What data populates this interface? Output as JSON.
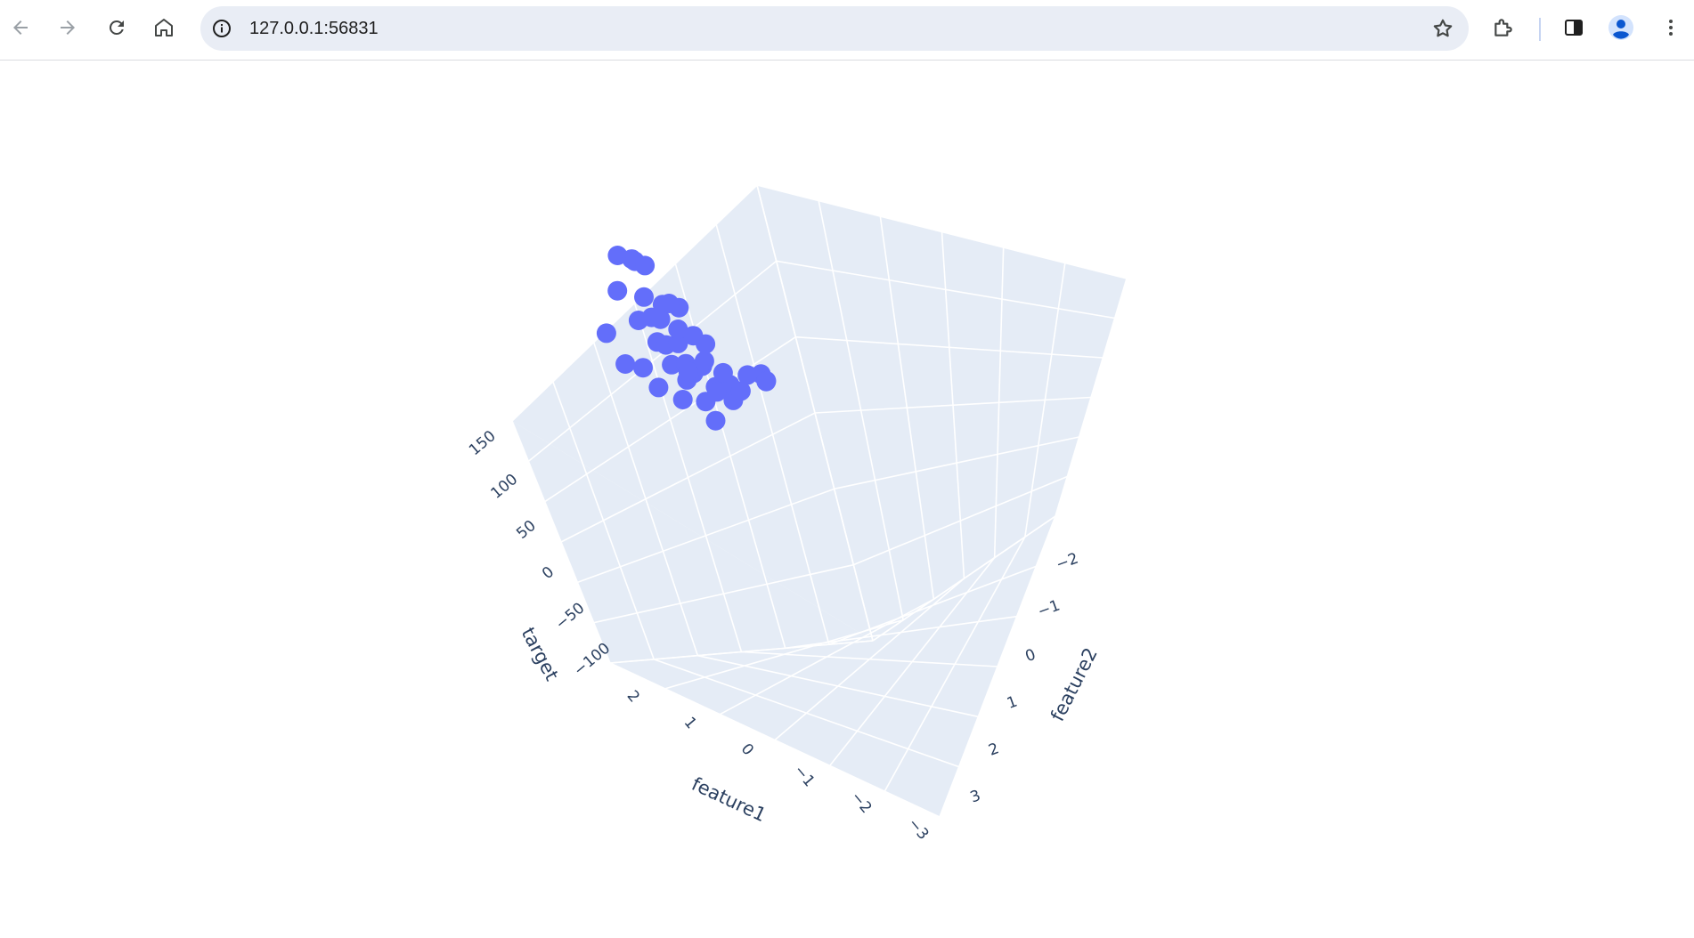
{
  "browser": {
    "url": "127.0.0.1:56831",
    "icons": [
      "back-arrow-icon",
      "forward-arrow-icon",
      "reload-icon",
      "home-icon",
      "site-info-icon",
      "bookmark-star-icon",
      "extensions-icon",
      "side-panel-icon",
      "profile-icon",
      "menu-kebab-icon"
    ]
  },
  "colors": {
    "marker": "#636efa",
    "scene_bg": "#e5ecf6",
    "grid": "#ffffff",
    "axis_text": "#2a3f5f"
  },
  "chart_data": {
    "type": "scatter3d",
    "title": "",
    "axes": {
      "x": {
        "title": "feature1",
        "ticks": [
          "2",
          "1",
          "0",
          "−1",
          "−2",
          "−3"
        ]
      },
      "y": {
        "title": "feature2",
        "ticks": [
          "−2",
          "−1",
          "0",
          "1",
          "2",
          "3"
        ]
      },
      "z": {
        "title": "target",
        "ticks": [
          "150",
          "100",
          "50",
          "0",
          "−50",
          "−100"
        ]
      }
    },
    "points": [
      {
        "feature1": 1.8,
        "feature2": -1.6,
        "target": 40
      },
      {
        "feature1": 1.6,
        "feature2": -1.2,
        "target": 110
      },
      {
        "feature1": 1.4,
        "feature2": -1.8,
        "target": 95
      },
      {
        "feature1": 1.5,
        "feature2": -0.8,
        "target": -10
      },
      {
        "feature1": 1.2,
        "feature2": -0.5,
        "target": 30
      },
      {
        "feature1": 1.1,
        "feature2": -1.4,
        "target": 120
      },
      {
        "feature1": 0.9,
        "feature2": -0.9,
        "target": 70
      },
      {
        "feature1": 0.8,
        "feature2": -2.0,
        "target": 140
      },
      {
        "feature1": 0.7,
        "feature2": -0.3,
        "target": 10
      },
      {
        "feature1": 0.6,
        "feature2": -1.1,
        "target": 60
      },
      {
        "feature1": 0.5,
        "feature2": -0.6,
        "target": 45
      },
      {
        "feature1": 0.4,
        "feature2": 0.1,
        "target": -20
      },
      {
        "feature1": 0.3,
        "feature2": -0.7,
        "target": 25
      },
      {
        "feature1": 0.2,
        "feature2": -1.3,
        "target": 85
      },
      {
        "feature1": 0.1,
        "feature2": -0.2,
        "target": 15
      },
      {
        "feature1": 0.0,
        "feature2": 0.3,
        "target": -35
      },
      {
        "feature1": -0.1,
        "feature2": -0.8,
        "target": 50
      },
      {
        "feature1": -0.2,
        "feature2": -0.4,
        "target": 5
      },
      {
        "feature1": -0.3,
        "feature2": 0.0,
        "target": -15
      },
      {
        "feature1": -0.4,
        "feature2": -1.6,
        "target": 100
      },
      {
        "feature1": -0.5,
        "feature2": 0.5,
        "target": -55
      },
      {
        "feature1": -0.6,
        "feature2": -0.1,
        "target": 0
      },
      {
        "feature1": -0.7,
        "feature2": 0.8,
        "target": -80
      },
      {
        "feature1": -0.8,
        "feature2": -0.5,
        "target": 20
      },
      {
        "feature1": -0.9,
        "feature2": 0.2,
        "target": -25
      },
      {
        "feature1": -1.0,
        "feature2": -1.0,
        "target": 55
      },
      {
        "feature1": -1.1,
        "feature2": 1.2,
        "target": -65
      },
      {
        "feature1": -1.2,
        "feature2": 0.6,
        "target": -30
      },
      {
        "feature1": -1.3,
        "feature2": -0.3,
        "target": 10
      },
      {
        "feature1": -1.4,
        "feature2": 1.0,
        "target": -45
      },
      {
        "feature1": -1.6,
        "feature2": 2.2,
        "target": -60
      },
      {
        "feature1": -1.8,
        "feature2": 0.4,
        "target": -5
      },
      {
        "feature1": -2.0,
        "feature2": 1.5,
        "target": -40
      },
      {
        "feature1": -2.2,
        "feature2": 0.9,
        "target": -20
      },
      {
        "feature1": 1.0,
        "feature2": 0.7,
        "target": -70
      },
      {
        "feature1": 0.5,
        "feature2": 1.4,
        "target": -95
      },
      {
        "feature1": -0.4,
        "feature2": 1.8,
        "target": -85
      },
      {
        "feature1": 1.3,
        "feature2": 0.2,
        "target": -40
      },
      {
        "feature1": 0.2,
        "feature2": 1.0,
        "target": -50
      },
      {
        "feature1": -0.8,
        "feature2": -1.5,
        "target": 75
      },
      {
        "feature1": 0.6,
        "feature2": -1.7,
        "target": 130
      },
      {
        "feature1": -0.2,
        "feature2": -1.9,
        "target": 110
      }
    ]
  }
}
